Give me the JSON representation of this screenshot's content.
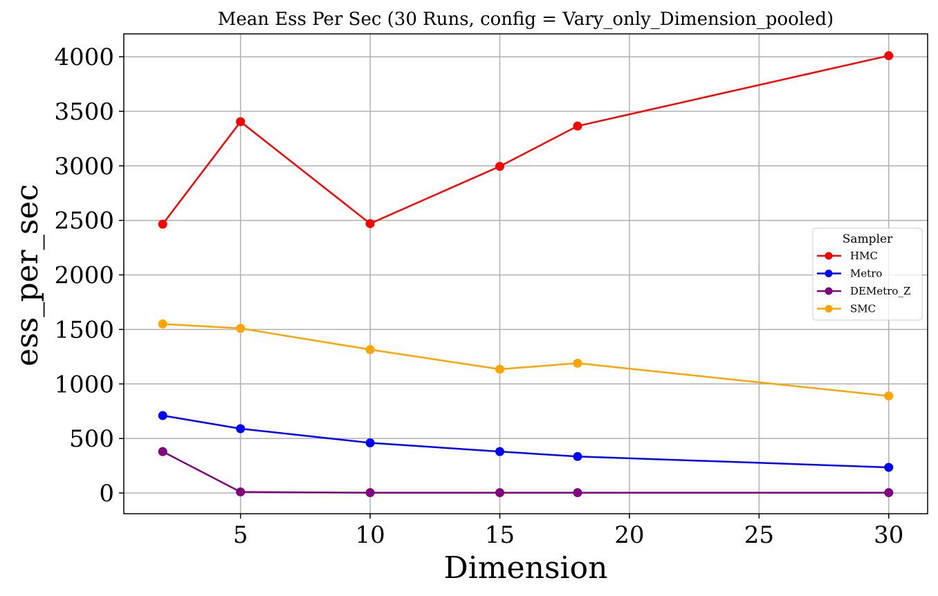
{
  "chart_data": {
    "type": "line",
    "title": "Mean Ess Per Sec (30 Runs, config = Vary_only_Dimension_pooled)",
    "xlabel": "Dimension",
    "ylabel": "ess_per_sec",
    "x": [
      2,
      5,
      10,
      15,
      18,
      30
    ],
    "xlim": [
      0.5,
      31.5
    ],
    "ylim": [
      -190,
      4210
    ],
    "xticks": [
      5,
      10,
      15,
      20,
      25,
      30
    ],
    "yticks": [
      0,
      500,
      1000,
      1500,
      2000,
      2500,
      3000,
      3500,
      4000
    ],
    "grid": true,
    "legend": {
      "title": "Sampler",
      "placement": "center-right"
    },
    "series": [
      {
        "name": "HMC",
        "color": "#ff0000",
        "values": [
          2465,
          3405,
          2470,
          2995,
          3365,
          4010
        ]
      },
      {
        "name": "Metro",
        "color": "#0000ff",
        "values": [
          710,
          590,
          460,
          380,
          335,
          235
        ]
      },
      {
        "name": "DEMetro_Z",
        "color": "#800080",
        "values": [
          380,
          10,
          3,
          3,
          3,
          3
        ]
      },
      {
        "name": "SMC",
        "color": "#ffa500",
        "values": [
          1550,
          1510,
          1315,
          1135,
          1190,
          890
        ]
      }
    ]
  }
}
